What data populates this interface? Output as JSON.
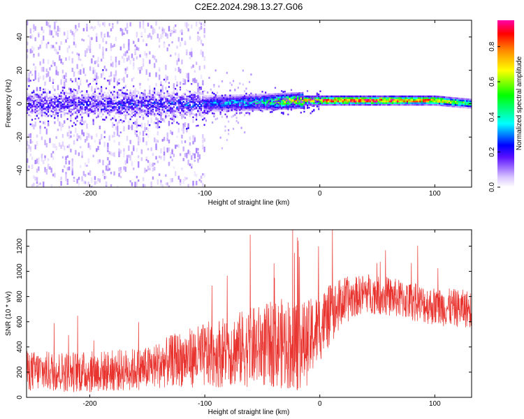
{
  "title": "C2E2.2024.298.13.27.G06",
  "colors": {
    "snr_line": "#e8332e",
    "frame": "#000000",
    "colormap": [
      "#ffffff",
      "#ead7ff",
      "#b982ff",
      "#7a2cff",
      "#3a00ff",
      "#00ffff",
      "#00ff00",
      "#ffff00",
      "#ff9900",
      "#ff0000",
      "#ff00aa"
    ]
  },
  "chart_data": [
    {
      "type": "heatmap",
      "xlabel": "Height of straight line (km)",
      "ylabel": "Frequency (Hz)",
      "xlim": [
        -255,
        132
      ],
      "ylim": [
        -50,
        50
      ],
      "xticks": [
        -200,
        -100,
        0,
        100
      ],
      "yticks": [
        -40,
        -20,
        0,
        20,
        40
      ],
      "xtick_labels": [
        "-200",
        "-100",
        "0",
        "100"
      ],
      "ytick_labels": [
        "-40",
        "-20",
        "0",
        "20",
        "40"
      ],
      "colorbar": {
        "label": "Normalized spectral amplitude",
        "range": [
          0,
          0.95
        ],
        "ticks": [
          0.0,
          0.2,
          0.4,
          0.6,
          0.8
        ],
        "tick_labels": [
          "0.0",
          "0.2",
          "0.4",
          "0.6",
          "0.8"
        ]
      },
      "band_center_hz": [
        {
          "x": -255,
          "y": 0
        },
        {
          "x": -100,
          "y": 0
        },
        {
          "x": -50,
          "y": 1
        },
        {
          "x": -15,
          "y": 2
        },
        {
          "x": 0,
          "y": 2
        },
        {
          "x": 50,
          "y": 2
        },
        {
          "x": 100,
          "y": 2
        },
        {
          "x": 132,
          "y": 0
        }
      ],
      "band_peak_amplitude": [
        {
          "x": -255,
          "v": 0.2
        },
        {
          "x": -100,
          "v": 0.3
        },
        {
          "x": -50,
          "v": 0.45
        },
        {
          "x": -15,
          "v": 0.85
        },
        {
          "x": 0,
          "v": 0.9
        },
        {
          "x": 50,
          "v": 0.92
        },
        {
          "x": 100,
          "v": 0.8
        },
        {
          "x": 132,
          "v": 0.5
        }
      ],
      "grid": false
    },
    {
      "type": "line",
      "xlabel": "Height of straight line (km)",
      "ylabel": "SNR (10 * v/v)",
      "xlim": [
        -255,
        132
      ],
      "ylim": [
        0,
        1330
      ],
      "xticks": [
        -200,
        -100,
        0,
        100
      ],
      "yticks": [
        0,
        200,
        400,
        600,
        800,
        1000,
        1200
      ],
      "xtick_labels": [
        "-200",
        "-100",
        "0",
        "100"
      ],
      "ytick_labels": [
        "0",
        "200",
        "400",
        "600",
        "800",
        "1000",
        "1200"
      ],
      "series": [
        {
          "mean": [
            {
              "x": -255,
              "y": 210
            },
            {
              "x": -200,
              "y": 200
            },
            {
              "x": -150,
              "y": 230
            },
            {
              "x": -125,
              "y": 300
            },
            {
              "x": -100,
              "y": 330
            },
            {
              "x": -80,
              "y": 370
            },
            {
              "x": -50,
              "y": 410
            },
            {
              "x": -30,
              "y": 430
            },
            {
              "x": -12,
              "y": 420
            },
            {
              "x": 0,
              "y": 560
            },
            {
              "x": 20,
              "y": 760
            },
            {
              "x": 40,
              "y": 830
            },
            {
              "x": 60,
              "y": 800
            },
            {
              "x": 80,
              "y": 760
            },
            {
              "x": 100,
              "y": 720
            },
            {
              "x": 132,
              "y": 700
            }
          ],
          "spread": [
            {
              "x": -255,
              "y": 160
            },
            {
              "x": -150,
              "y": 170
            },
            {
              "x": -100,
              "y": 260
            },
            {
              "x": -50,
              "y": 330
            },
            {
              "x": -20,
              "y": 380
            },
            {
              "x": 0,
              "y": 280
            },
            {
              "x": 30,
              "y": 160
            },
            {
              "x": 132,
              "y": 150
            }
          ],
          "peak_max": 1320
        }
      ],
      "grid": false
    }
  ]
}
